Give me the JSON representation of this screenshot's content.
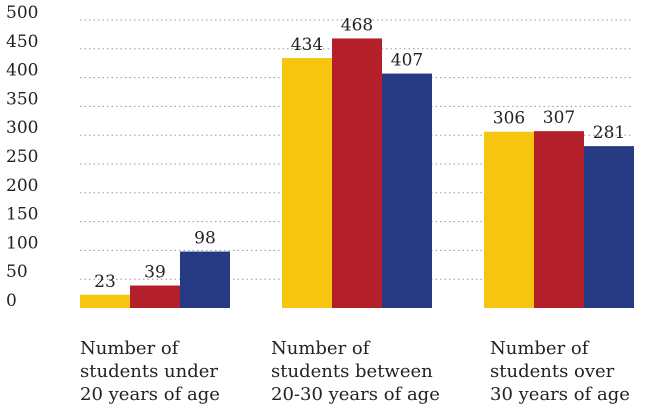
{
  "chart_data": {
    "type": "bar",
    "categories": [
      "Number of\nstudents under\n20 years of age",
      "Number of\nstudents between\n20-30 years of age",
      "Number of\nstudents over\n30 years of age"
    ],
    "series": [
      {
        "values": [
          23,
          434,
          306
        ],
        "color": "#f5c50f"
      },
      {
        "values": [
          39,
          468,
          307
        ],
        "color": "#b4202a"
      },
      {
        "values": [
          98,
          407,
          281
        ],
        "color": "#253a82"
      }
    ],
    "ylim": [
      0,
      500
    ],
    "yticks": [
      0,
      50,
      100,
      150,
      200,
      250,
      300,
      350,
      400,
      450,
      500
    ],
    "grid": "dotted-horizontal",
    "legend": "none"
  }
}
